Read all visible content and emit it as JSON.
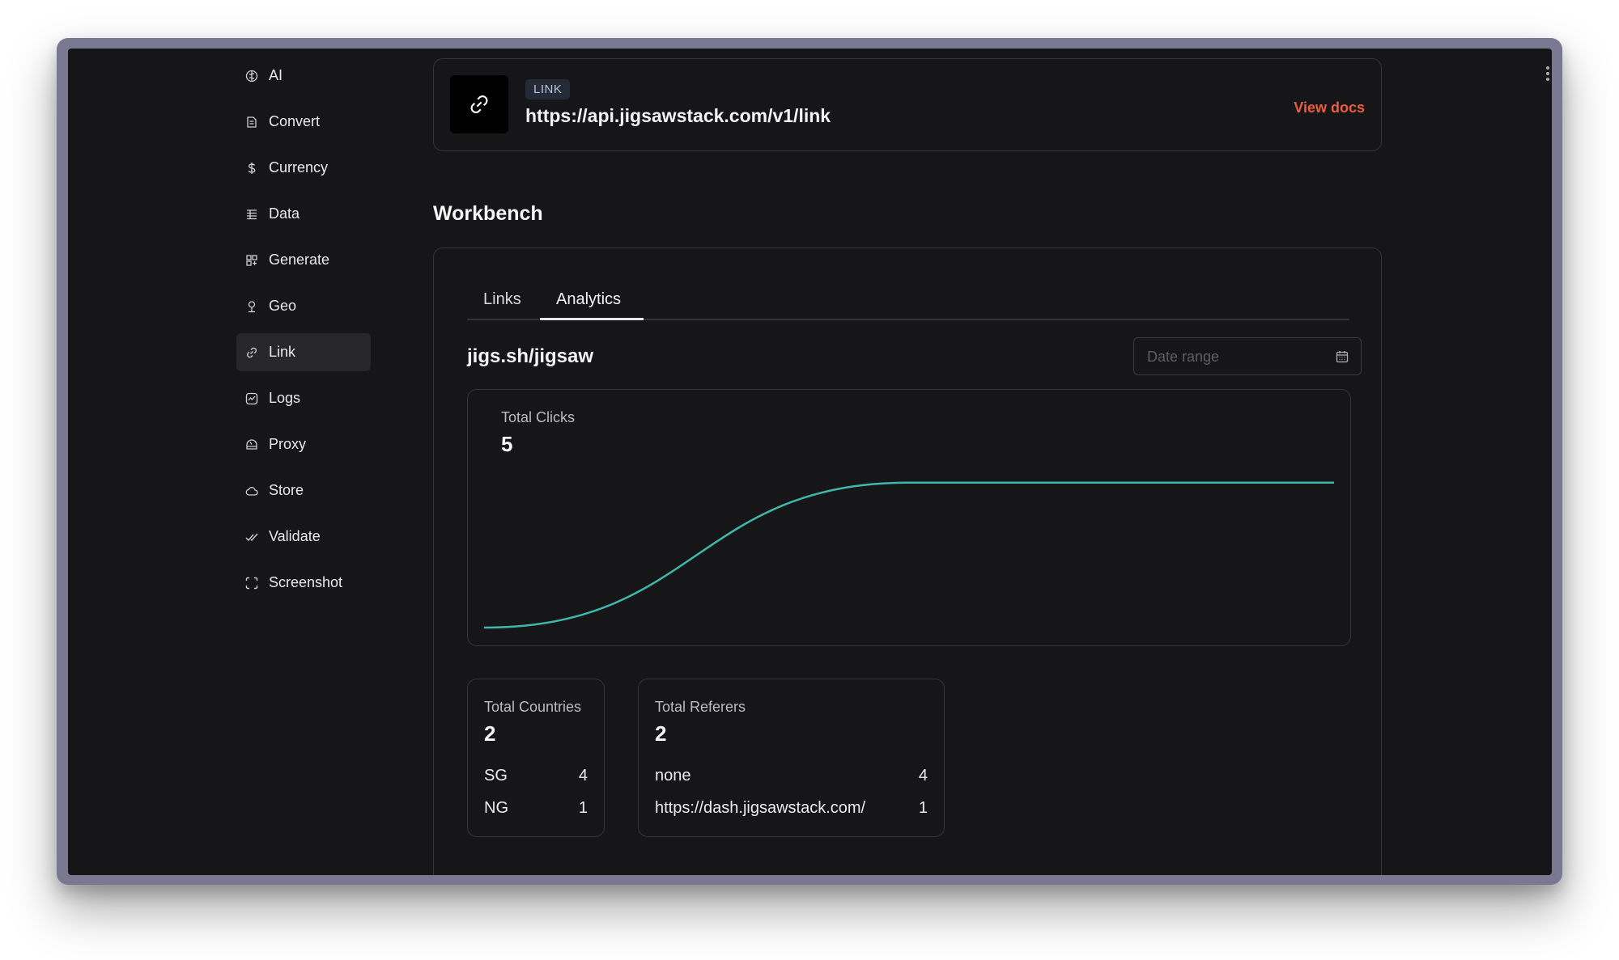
{
  "sidebar": {
    "items": [
      {
        "label": "AI",
        "icon": "brain-icon"
      },
      {
        "label": "Convert",
        "icon": "convert-icon"
      },
      {
        "label": "Currency",
        "icon": "dollar-icon"
      },
      {
        "label": "Data",
        "icon": "data-icon"
      },
      {
        "label": "Generate",
        "icon": "generate-icon"
      },
      {
        "label": "Geo",
        "icon": "location-pin-icon"
      },
      {
        "label": "Link",
        "icon": "link-icon",
        "active": true
      },
      {
        "label": "Logs",
        "icon": "logs-icon"
      },
      {
        "label": "Proxy",
        "icon": "proxy-icon"
      },
      {
        "label": "Store",
        "icon": "cloud-icon"
      },
      {
        "label": "Validate",
        "icon": "check-icon"
      },
      {
        "label": "Screenshot",
        "icon": "screenshot-icon"
      }
    ]
  },
  "endpoint": {
    "tag": "LINK",
    "url": "https://api.jigsawstack.com/v1/link",
    "docs_label": "View docs",
    "icon": "link-icon"
  },
  "workbench": {
    "title": "Workbench",
    "tabs": [
      {
        "label": "Links",
        "active": false
      },
      {
        "label": "Analytics",
        "active": true
      }
    ],
    "short_link": "jigs.sh/jigsaw",
    "date_range_placeholder": "Date range",
    "total_clicks": {
      "label": "Total Clicks",
      "value": "5"
    },
    "countries": {
      "label": "Total Countries",
      "value": "2",
      "rows": [
        {
          "name": "SG",
          "count": "4"
        },
        {
          "name": "NG",
          "count": "1"
        }
      ]
    },
    "referers": {
      "label": "Total Referers",
      "value": "2",
      "rows": [
        {
          "name": "none",
          "count": "4"
        },
        {
          "name": "https://dash.jigsawstack.com/",
          "count": "1"
        }
      ]
    }
  },
  "chart_data": {
    "type": "area",
    "x": [
      0,
      1,
      2
    ],
    "series": [
      {
        "values": [
          0,
          4,
          4
        ]
      }
    ],
    "ylim": [
      0,
      5
    ],
    "grid": false,
    "line_color": "#3fb8ac"
  },
  "colors": {
    "accent": "#ef5b3f",
    "chart_line": "#3fb8ac",
    "background": "#161618"
  }
}
